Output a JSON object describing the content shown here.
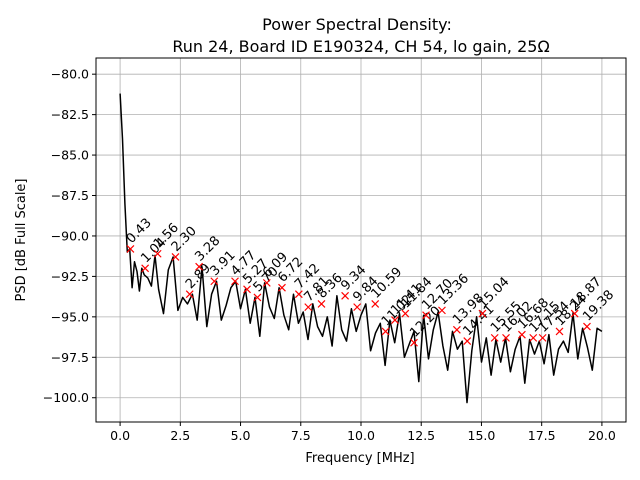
{
  "chart_data": {
    "type": "line",
    "title_line1": "Power Spectral Density:",
    "title_line2": "Run 24, Board ID E190324, CH 54, lo gain, 25Ω",
    "xlabel": "Frequency [MHz]",
    "ylabel": "PSD [dB Full Scale]",
    "xlim": [
      -1.0,
      21.0
    ],
    "ylim": [
      -101.5,
      -79.0
    ],
    "xticks": [
      0.0,
      2.5,
      5.0,
      7.5,
      10.0,
      12.5,
      15.0,
      17.5,
      20.0
    ],
    "yticks": [
      -100.0,
      -97.5,
      -95.0,
      -92.5,
      -90.0,
      -87.5,
      -85.0,
      -82.5,
      -80.0
    ],
    "xtick_labels": [
      "0.0",
      "2.5",
      "5.0",
      "7.5",
      "10.0",
      "12.5",
      "15.0",
      "17.5",
      "20.0"
    ],
    "ytick_labels": [
      "−100.0",
      "−97.5",
      "−95.0",
      "−92.5",
      "−90.0",
      "−87.5",
      "−85.0",
      "−82.5",
      "−80.0"
    ],
    "grid": true,
    "line_color": "#000000",
    "marker_color": "#ff0000",
    "marker": "x",
    "series": [
      {
        "x": [
          0.0,
          0.1,
          0.2,
          0.3,
          0.4,
          0.5,
          0.6,
          0.7,
          0.8,
          0.9,
          1.0,
          1.15,
          1.3,
          1.45,
          1.6,
          1.8,
          2.0,
          2.2,
          2.4,
          2.6,
          2.8,
          3.0,
          3.2,
          3.4,
          3.6,
          3.8,
          4.0,
          4.2,
          4.4,
          4.6,
          4.8,
          5.0,
          5.2,
          5.4,
          5.6,
          5.8,
          6.0,
          6.2,
          6.4,
          6.6,
          6.8,
          7.0,
          7.2,
          7.4,
          7.6,
          7.8,
          8.0,
          8.2,
          8.4,
          8.6,
          8.8,
          9.0,
          9.2,
          9.4,
          9.6,
          9.8,
          10.0,
          10.2,
          10.4,
          10.6,
          10.8,
          11.0,
          11.2,
          11.4,
          11.6,
          11.8,
          12.0,
          12.2,
          12.4,
          12.6,
          12.8,
          13.0,
          13.2,
          13.4,
          13.6,
          13.8,
          14.0,
          14.2,
          14.4,
          14.6,
          14.8,
          15.0,
          15.2,
          15.4,
          15.6,
          15.8,
          16.0,
          16.2,
          16.4,
          16.6,
          16.8,
          17.0,
          17.2,
          17.4,
          17.6,
          17.8,
          18.0,
          18.2,
          18.4,
          18.6,
          18.8,
          19.0,
          19.2,
          19.4,
          19.6,
          19.8,
          20.0
        ],
        "y": [
          -81.2,
          -84.0,
          -88.0,
          -91.0,
          -90.8,
          -93.2,
          -91.6,
          -92.2,
          -93.4,
          -92.0,
          -92.4,
          -92.6,
          -93.1,
          -91.2,
          -93.3,
          -94.8,
          -92.1,
          -91.3,
          -94.6,
          -93.8,
          -94.2,
          -93.6,
          -95.2,
          -91.9,
          -95.6,
          -93.6,
          -92.8,
          -95.2,
          -94.3,
          -93.2,
          -92.8,
          -94.5,
          -93.3,
          -95.4,
          -93.8,
          -96.2,
          -92.9,
          -94.4,
          -95.1,
          -93.2,
          -94.9,
          -95.8,
          -93.6,
          -95.4,
          -94.7,
          -96.4,
          -94.2,
          -95.6,
          -96.2,
          -95.0,
          -96.8,
          -93.7,
          -95.8,
          -96.5,
          -94.5,
          -95.9,
          -94.9,
          -94.2,
          -97.1,
          -96.0,
          -95.4,
          -98.0,
          -95.2,
          -96.6,
          -94.8,
          -97.5,
          -96.7,
          -95.9,
          -99.0,
          -94.9,
          -97.6,
          -95.8,
          -94.7,
          -96.8,
          -98.3,
          -95.9,
          -97.0,
          -96.5,
          -100.3,
          -97.1,
          -95.0,
          -97.8,
          -96.3,
          -98.6,
          -96.4,
          -97.8,
          -96.3,
          -98.4,
          -97.0,
          -96.2,
          -99.1,
          -96.4,
          -97.3,
          -96.5,
          -97.9,
          -96.1,
          -98.6,
          -97.0,
          -96.5,
          -97.2,
          -94.8,
          -97.6,
          -95.7,
          -96.9,
          -98.3,
          -95.7,
          -95.9
        ]
      }
    ],
    "peaks": [
      {
        "x": 0.43,
        "y": -90.8,
        "label": "0.43"
      },
      {
        "x": 1.04,
        "y": -92.0,
        "label": "1.04"
      },
      {
        "x": 1.56,
        "y": -91.1,
        "label": "1.56"
      },
      {
        "x": 2.3,
        "y": -91.3,
        "label": "2.30"
      },
      {
        "x": 2.89,
        "y": -93.6,
        "label": "2.89"
      },
      {
        "x": 3.28,
        "y": -91.9,
        "label": "3.28"
      },
      {
        "x": 3.91,
        "y": -92.8,
        "label": "3.91"
      },
      {
        "x": 4.77,
        "y": -92.8,
        "label": "4.77"
      },
      {
        "x": 5.27,
        "y": -93.3,
        "label": "5.27"
      },
      {
        "x": 5.7,
        "y": -93.8,
        "label": "5.70"
      },
      {
        "x": 6.09,
        "y": -92.9,
        "label": "6.09"
      },
      {
        "x": 6.72,
        "y": -93.2,
        "label": "6.72"
      },
      {
        "x": 7.42,
        "y": -93.6,
        "label": "7.42"
      },
      {
        "x": 7.81,
        "y": -94.4,
        "label": "7.81"
      },
      {
        "x": 8.36,
        "y": -94.2,
        "label": "8.36"
      },
      {
        "x": 9.34,
        "y": -93.7,
        "label": "9.34"
      },
      {
        "x": 9.84,
        "y": -94.4,
        "label": "9.84"
      },
      {
        "x": 10.59,
        "y": -94.2,
        "label": "10.59"
      },
      {
        "x": 11.02,
        "y": -95.9,
        "label": "11.02"
      },
      {
        "x": 11.41,
        "y": -95.2,
        "label": "11.41"
      },
      {
        "x": 11.84,
        "y": -94.8,
        "label": "11.84"
      },
      {
        "x": 12.2,
        "y": -96.6,
        "label": "12.20"
      },
      {
        "x": 12.7,
        "y": -94.9,
        "label": "12.70"
      },
      {
        "x": 13.36,
        "y": -94.6,
        "label": "13.36"
      },
      {
        "x": 13.98,
        "y": -95.8,
        "label": "13.98"
      },
      {
        "x": 14.41,
        "y": -96.5,
        "label": "14.41"
      },
      {
        "x": 15.04,
        "y": -94.8,
        "label": "15.04"
      },
      {
        "x": 15.55,
        "y": -96.3,
        "label": "15.55"
      },
      {
        "x": 16.02,
        "y": -96.3,
        "label": "16.02"
      },
      {
        "x": 16.68,
        "y": -96.1,
        "label": "16.68"
      },
      {
        "x": 17.15,
        "y": -96.3,
        "label": "17.15"
      },
      {
        "x": 17.54,
        "y": -96.3,
        "label": "17.54"
      },
      {
        "x": 18.24,
        "y": -95.9,
        "label": "18.24"
      },
      {
        "x": 18.87,
        "y": -94.8,
        "label": "18.87"
      },
      {
        "x": 19.38,
        "y": -95.6,
        "label": "19.38"
      }
    ]
  }
}
